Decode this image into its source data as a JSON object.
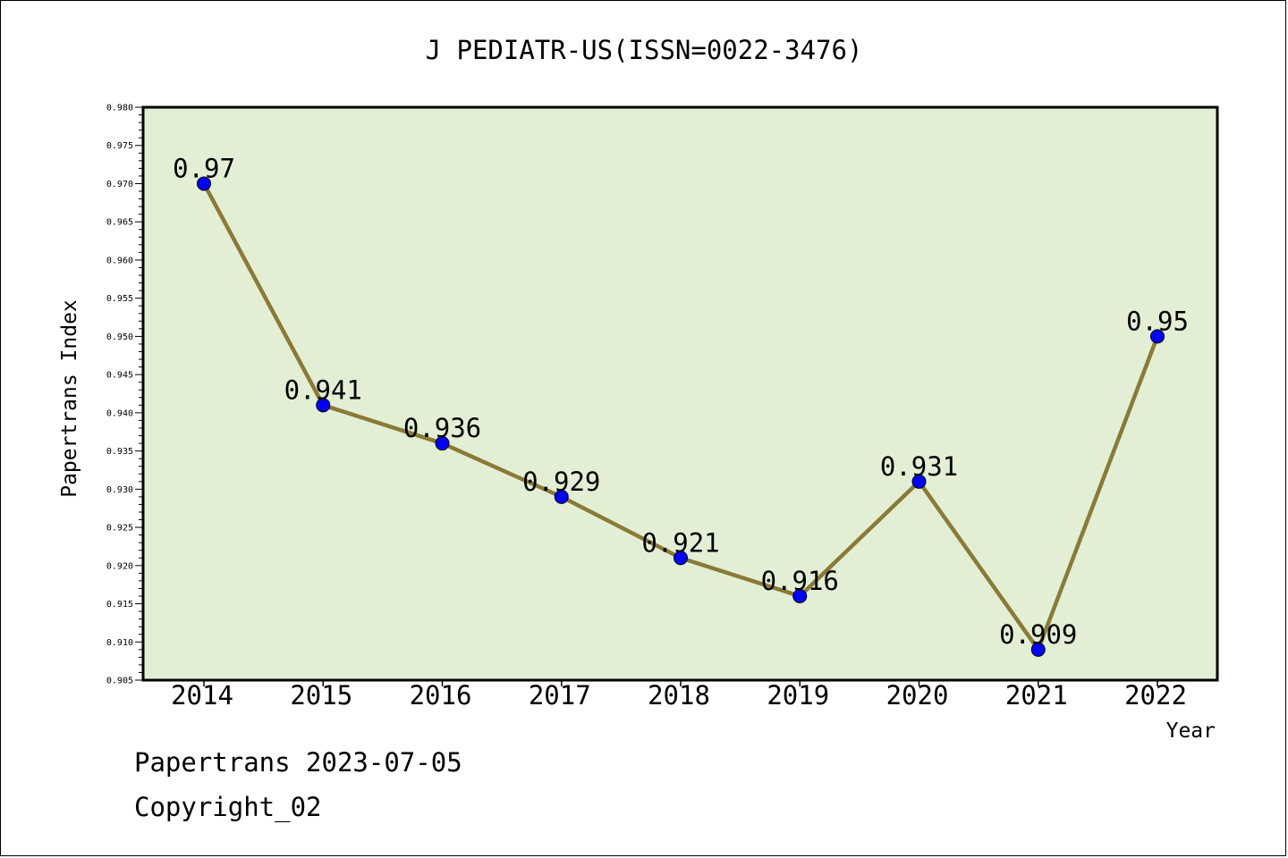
{
  "chart_data": {
    "type": "line",
    "title": "J PEDIATR-US(ISSN=0022-3476)",
    "xlabel": "Year",
    "ylabel": "Papertrans Index",
    "categories": [
      "2014",
      "2015",
      "2016",
      "2017",
      "2018",
      "2019",
      "2020",
      "2021",
      "2022"
    ],
    "series": [
      {
        "values": [
          0.97,
          0.941,
          0.936,
          0.929,
          0.921,
          0.916,
          0.931,
          0.909,
          0.95
        ],
        "labels": [
          "0.97",
          "0.941",
          "0.936",
          "0.929",
          "0.921",
          "0.916",
          "0.931",
          "0.909",
          "0.95"
        ]
      }
    ],
    "ylim": [
      0.905,
      0.98
    ],
    "yticks": [
      "0.905",
      "0.910",
      "0.915",
      "0.920",
      "0.925",
      "0.930",
      "0.935",
      "0.940",
      "0.945",
      "0.950",
      "0.955",
      "0.960",
      "0.965",
      "0.970",
      "0.975",
      "0.980"
    ],
    "grid": false,
    "colors": {
      "plot_bg": "#e2efd5",
      "line": "#8b7a35",
      "marker": "#0000ff"
    }
  },
  "footer": {
    "line1": "Papertrans 2023-07-05",
    "line2": "Copyright_02"
  }
}
